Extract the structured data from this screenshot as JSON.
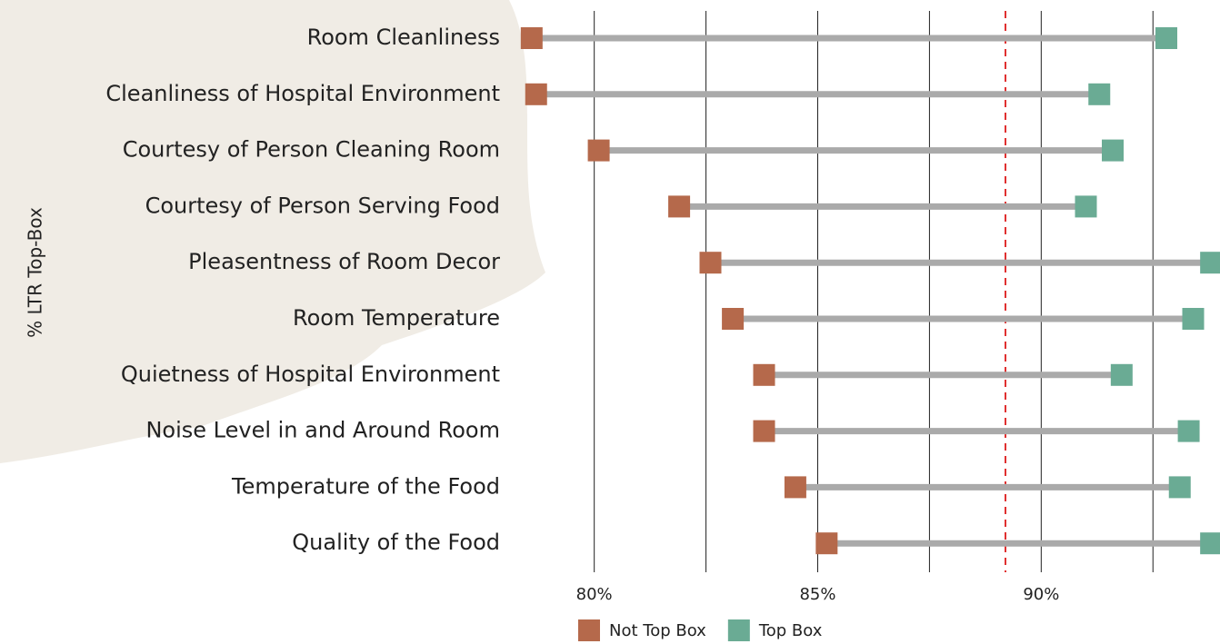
{
  "chart_data": {
    "type": "dumbbell",
    "y_axis_label": "% LTR Top-Box",
    "categories": [
      "Room Cleanliness",
      "Cleanliness of Hospital Environment",
      "Courtesy of Person Cleaning Room",
      "Courtesy of Person Serving Food",
      "Pleasentness of Room Decor",
      "Room Temperature",
      "Quietness of Hospital Environment",
      "Noise Level in and Around Room",
      "Temperature of the Food",
      "Quality of the Food"
    ],
    "series": [
      {
        "name": "Not Top Box",
        "color": "#b5694b",
        "values": [
          78.6,
          78.7,
          80.1,
          81.9,
          82.6,
          83.1,
          83.8,
          83.8,
          84.5,
          85.2
        ]
      },
      {
        "name": "Top Box",
        "color": "#6aab94",
        "values": [
          92.8,
          91.3,
          91.6,
          91.0,
          93.8,
          93.4,
          91.8,
          93.3,
          93.1,
          93.8
        ]
      }
    ],
    "connector_color": "#aaaaaa",
    "xlim": [
      78.4,
      94.0
    ],
    "xticks": [
      {
        "value": 80,
        "label": "80%"
      },
      {
        "value": 85,
        "label": "85%"
      },
      {
        "value": 90,
        "label": "90%"
      }
    ],
    "minor_gridlines": [
      82.5,
      87.5,
      92.5
    ],
    "grid": true,
    "reference_line": {
      "value": 89.2,
      "color": "#e03030"
    },
    "legend": "bottom"
  }
}
